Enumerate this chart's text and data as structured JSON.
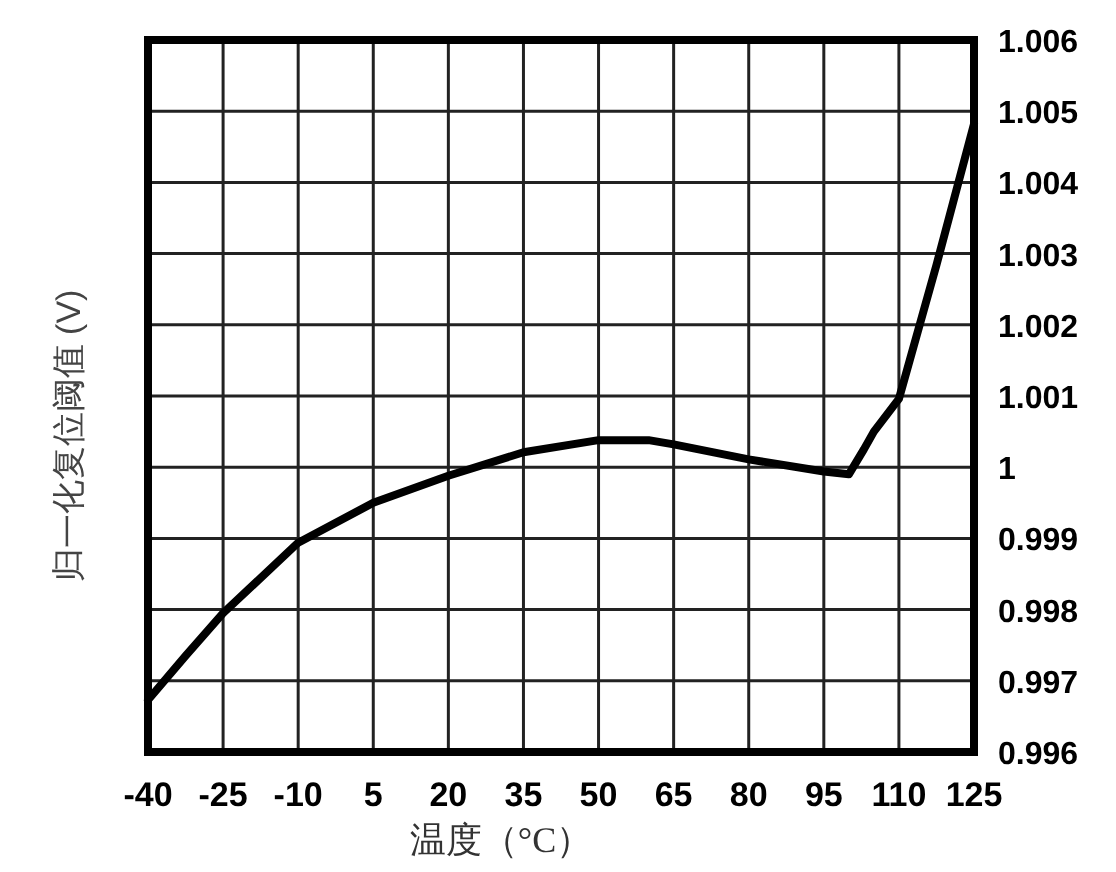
{
  "chart_data": {
    "type": "line",
    "xlabel": "温度（°C）",
    "ylabel": "归一化复位阈值 (V)",
    "x": [
      -40,
      -32.5,
      -25,
      -10,
      5,
      20,
      35,
      50,
      60,
      65,
      80,
      95,
      100,
      103,
      105,
      110,
      117.5,
      120,
      125
    ],
    "series": [
      {
        "color": "#000000",
        "values": [
          0.99673,
          0.99735,
          0.99795,
          0.99894,
          0.9995,
          0.99988,
          1.00021,
          1.00038,
          1.00038,
          1.00032,
          1.00011,
          0.99994,
          0.9999,
          1.00025,
          1.0005,
          1.00096,
          1.00284,
          1.0035,
          1.00482
        ]
      }
    ],
    "xlim": [
      -40,
      125
    ],
    "xticks": [
      -40,
      -25,
      -10,
      5,
      20,
      35,
      50,
      65,
      80,
      95,
      110,
      125
    ],
    "ylim": [
      0.996,
      1.006
    ],
    "yticks": [
      0.996,
      0.997,
      0.998,
      0.999,
      1,
      1.001,
      1.002,
      1.003,
      1.004,
      1.005,
      1.006
    ],
    "grid": true,
    "line_style": "solid",
    "marker": "none"
  }
}
